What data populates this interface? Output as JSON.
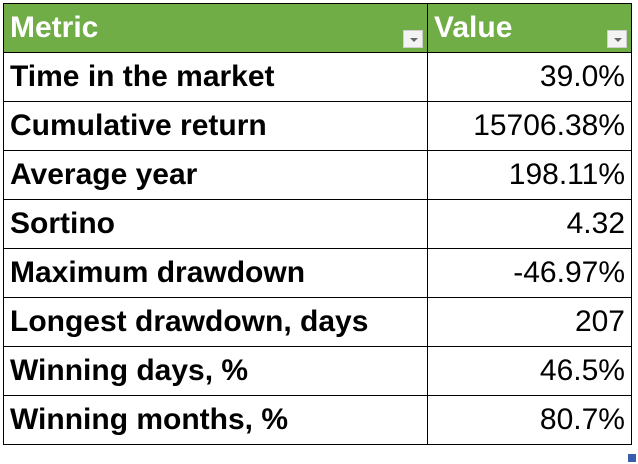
{
  "header": {
    "metric": "Metric",
    "value": "Value",
    "color": "#70AD47"
  },
  "rows": [
    {
      "metric": "Time in the market",
      "value": "39.0%"
    },
    {
      "metric": "Cumulative return",
      "value": "15706.38%"
    },
    {
      "metric": "Average year",
      "value": "198.11%"
    },
    {
      "metric": "Sortino",
      "value": "4.32"
    },
    {
      "metric": "Maximum drawdown",
      "value": "-46.97%"
    },
    {
      "metric": "Longest drawdown, days",
      "value": "207"
    },
    {
      "metric": "Winning days, %",
      "value": "46.5%"
    },
    {
      "metric": "Winning months, %",
      "value": "80.7%"
    }
  ]
}
